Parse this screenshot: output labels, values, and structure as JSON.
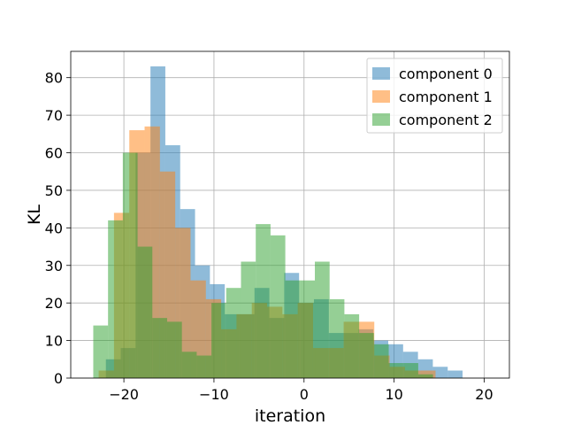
{
  "chart_data": {
    "type": "histogram",
    "xlabel": "iteration",
    "ylabel": "KL",
    "xlim": [
      -25.9,
      22.8
    ],
    "ylim": [
      0,
      87
    ],
    "xticks": [
      -20,
      -10,
      0,
      10,
      20
    ],
    "xtick_labels": [
      "−20",
      "−10",
      "0",
      "10",
      "20"
    ],
    "yticks": [
      0,
      10,
      20,
      30,
      40,
      50,
      60,
      70,
      80
    ],
    "grid": true,
    "legend_position": "top-right",
    "series": [
      {
        "name": "component 0",
        "color": "#1f77b4",
        "opacity": 0.5,
        "bin_start": -22.0,
        "bin_width": 1.65,
        "counts": [
          5,
          8,
          60,
          83,
          62,
          45,
          30,
          25,
          17,
          17,
          24,
          16,
          28,
          20,
          21,
          12,
          12,
          13,
          10,
          9,
          7,
          5,
          3,
          2
        ]
      },
      {
        "name": "component 1",
        "color": "#ff7f0e",
        "opacity": 0.5,
        "bin_start": -22.8,
        "bin_width": 1.7,
        "counts": [
          2,
          44,
          66,
          67,
          55,
          40,
          26,
          21,
          13,
          17,
          20,
          19,
          17,
          20,
          8,
          8,
          15,
          15,
          6,
          3,
          2,
          2
        ]
      },
      {
        "name": "component 2",
        "color": "#2ca02c",
        "opacity": 0.5,
        "bin_start": -23.4,
        "bin_width": 1.64,
        "counts": [
          14,
          42,
          60,
          35,
          16,
          15,
          7,
          6,
          20,
          24,
          31,
          41,
          38,
          26,
          26,
          31,
          21,
          17,
          12,
          9,
          4,
          4,
          1
        ]
      }
    ]
  }
}
